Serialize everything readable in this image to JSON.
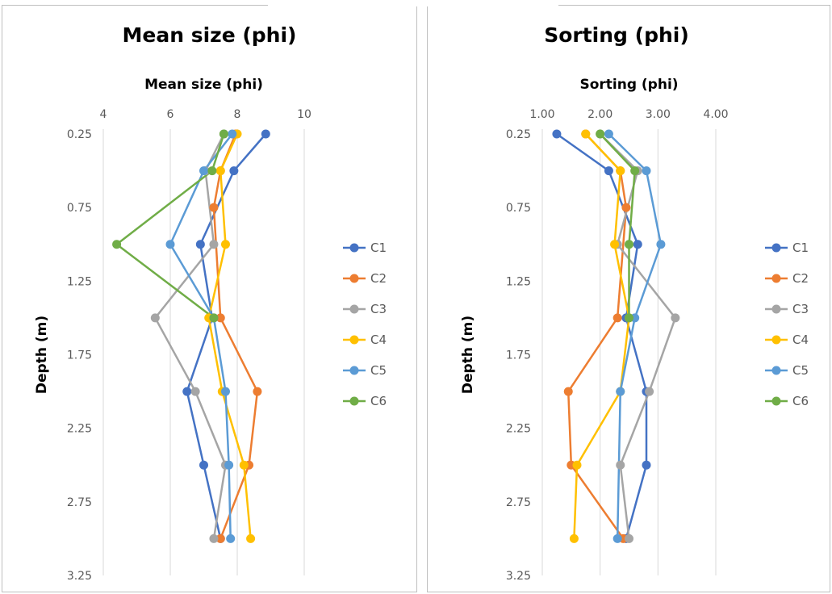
{
  "chart_data": [
    {
      "type": "line",
      "title": "Mean size (phi)",
      "xlabel": "Mean size (phi)",
      "ylabel": "Depth (m)",
      "xlim": [
        4,
        10
      ],
      "ylim": [
        0.25,
        3.25
      ],
      "y_reversed": true,
      "x_ticks": [
        "4",
        "6",
        "8",
        "10"
      ],
      "y_ticks": [
        "0.25",
        "0.75",
        "1.25",
        "1.75",
        "2.25",
        "2.75",
        "3.25"
      ],
      "grid": "vertical",
      "legend_position": "right",
      "depths": [
        0.25,
        0.5,
        0.75,
        1.0,
        1.5,
        2.0,
        2.5,
        3.0
      ],
      "series": [
        {
          "name": "C1",
          "color": "#4472C4",
          "points": [
            [
              8.85,
              0.25
            ],
            [
              7.9,
              0.5
            ],
            [
              6.9,
              1.0
            ],
            [
              7.25,
              1.5
            ],
            [
              6.5,
              2.0
            ],
            [
              7.0,
              2.5
            ],
            [
              7.5,
              3.0
            ]
          ]
        },
        {
          "name": "C2",
          "color": "#ED7D31",
          "points": [
            [
              7.95,
              0.25
            ],
            [
              7.5,
              0.5
            ],
            [
              7.3,
              0.75
            ],
            [
              7.5,
              1.5
            ],
            [
              8.6,
              2.0
            ],
            [
              8.35,
              2.5
            ],
            [
              7.5,
              3.0
            ]
          ]
        },
        {
          "name": "C3",
          "color": "#A5A5A5",
          "points": [
            [
              7.6,
              0.25
            ],
            [
              7.05,
              0.5
            ],
            [
              7.3,
              1.0
            ],
            [
              5.55,
              1.5
            ],
            [
              6.75,
              2.0
            ],
            [
              7.65,
              2.5
            ],
            [
              7.3,
              3.0
            ]
          ]
        },
        {
          "name": "C4",
          "color": "#FFC000",
          "points": [
            [
              8.0,
              0.25
            ],
            [
              7.5,
              0.5
            ],
            [
              7.65,
              1.0
            ],
            [
              7.15,
              1.5
            ],
            [
              7.55,
              2.0
            ],
            [
              8.2,
              2.5
            ],
            [
              8.4,
              3.0
            ]
          ]
        },
        {
          "name": "C5",
          "color": "#5B9BD5",
          "points": [
            [
              7.85,
              0.25
            ],
            [
              7.0,
              0.5
            ],
            [
              6.0,
              1.0
            ],
            [
              7.3,
              1.5
            ],
            [
              7.65,
              2.0
            ],
            [
              7.75,
              2.5
            ],
            [
              7.8,
              3.0
            ]
          ]
        },
        {
          "name": "C6",
          "color": "#70AD47",
          "points": [
            [
              7.6,
              0.25
            ],
            [
              7.25,
              0.5
            ],
            [
              4.4,
              1.0
            ],
            [
              7.3,
              1.5
            ]
          ]
        }
      ]
    },
    {
      "type": "line",
      "title": "Sorting (phi)",
      "xlabel": "Sorting (phi)",
      "ylabel": "Depth (m)",
      "xlim": [
        1.0,
        4.0
      ],
      "ylim": [
        0.25,
        3.25
      ],
      "y_reversed": true,
      "x_ticks": [
        "1.00",
        "2.00",
        "3.00",
        "4.00"
      ],
      "y_ticks": [
        "0.25",
        "0.75",
        "1.25",
        "1.75",
        "2.25",
        "2.75",
        "3.25"
      ],
      "grid": "vertical",
      "legend_position": "right",
      "series": [
        {
          "name": "C1",
          "color": "#4472C4",
          "points": [
            [
              1.25,
              0.25
            ],
            [
              2.15,
              0.5
            ],
            [
              2.65,
              1.0
            ],
            [
              2.45,
              1.5
            ],
            [
              2.8,
              2.0
            ],
            [
              2.8,
              2.5
            ],
            [
              2.45,
              3.0
            ]
          ]
        },
        {
          "name": "C2",
          "color": "#ED7D31",
          "points": [
            [
              1.75,
              0.25
            ],
            [
              2.35,
              0.5
            ],
            [
              2.45,
              0.75
            ],
            [
              2.3,
              1.5
            ],
            [
              1.45,
              2.0
            ],
            [
              1.5,
              2.5
            ],
            [
              2.4,
              3.0
            ]
          ]
        },
        {
          "name": "C3",
          "color": "#A5A5A5",
          "points": [
            [
              2.0,
              0.25
            ],
            [
              2.65,
              0.5
            ],
            [
              2.3,
              1.0
            ],
            [
              3.3,
              1.5
            ],
            [
              2.85,
              2.0
            ],
            [
              2.35,
              2.5
            ],
            [
              2.5,
              3.0
            ]
          ]
        },
        {
          "name": "C4",
          "color": "#FFC000",
          "points": [
            [
              1.75,
              0.25
            ],
            [
              2.35,
              0.5
            ],
            [
              2.25,
              1.0
            ],
            [
              2.5,
              1.5
            ],
            [
              2.35,
              2.0
            ],
            [
              1.6,
              2.5
            ],
            [
              1.55,
              3.0
            ]
          ]
        },
        {
          "name": "C5",
          "color": "#5B9BD5",
          "points": [
            [
              2.15,
              0.25
            ],
            [
              2.8,
              0.5
            ],
            [
              3.05,
              1.0
            ],
            [
              2.6,
              1.5
            ],
            [
              2.35,
              2.0
            ],
            [
              2.3,
              3.0
            ]
          ]
        },
        {
          "name": "C6",
          "color": "#70AD47",
          "points": [
            [
              2.0,
              0.25
            ],
            [
              2.6,
              0.5
            ],
            [
              2.5,
              1.0
            ],
            [
              2.5,
              1.5
            ]
          ]
        }
      ]
    }
  ]
}
